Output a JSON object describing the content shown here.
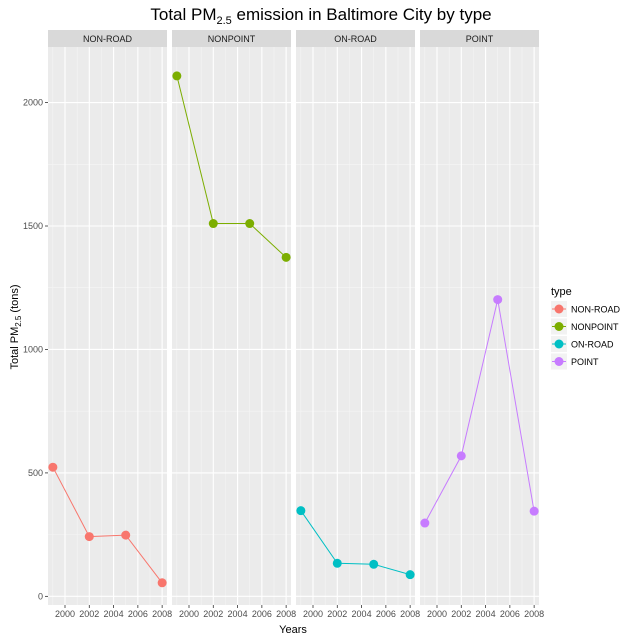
{
  "chart_data": {
    "type": "line",
    "title": {
      "main": "Total PM",
      "sub": "2.5",
      "rest": " emission in Baltimore City by type"
    },
    "xlabel": "Years",
    "ylabel": {
      "main": "Total PM",
      "sub": "2.5",
      "rest": " (tons)"
    },
    "xlim": [
      1998.6,
      2008.4
    ],
    "ylim": [
      -35,
      2225
    ],
    "x_ticks": [
      2000,
      2002,
      2004,
      2006,
      2008
    ],
    "y_ticks": [
      0,
      500,
      1000,
      1500,
      2000
    ],
    "x": [
      1999,
      2002,
      2005,
      2008
    ],
    "grid": true,
    "legend": {
      "title": "type",
      "position": "right"
    },
    "panels": [
      {
        "name": "NON-ROAD",
        "color": "#F8766D",
        "values": [
          523,
          242,
          248,
          55
        ]
      },
      {
        "name": "NONPOINT",
        "color": "#7CAE00",
        "values": [
          2108,
          1510,
          1510,
          1373
        ]
      },
      {
        "name": "ON-ROAD",
        "color": "#00BFC4",
        "values": [
          347,
          134,
          130,
          88
        ]
      },
      {
        "name": "POINT",
        "color": "#C77CFF",
        "values": [
          297,
          569,
          1202,
          345
        ]
      }
    ]
  }
}
